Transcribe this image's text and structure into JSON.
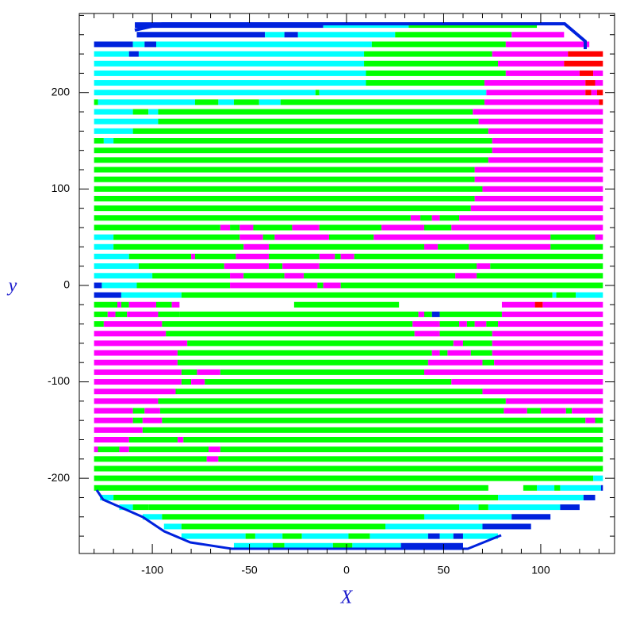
{
  "chart_data": {
    "type": "strips",
    "xlabel": "X",
    "ylabel": "y",
    "xlim": [
      -137.6,
      138
    ],
    "ylim": [
      -278,
      282
    ],
    "xticks": [
      -100,
      -50,
      0,
      50,
      100
    ],
    "yticks": [
      -200,
      -100,
      0,
      100,
      200
    ],
    "xminorticks": [
      -130,
      -120,
      -110,
      -90,
      -80,
      -70,
      -60,
      -40,
      -30,
      -20,
      -10,
      10,
      20,
      30,
      40,
      60,
      70,
      80,
      90,
      110,
      120,
      130
    ],
    "yminorticks": [
      -260,
      -240,
      -220,
      -180,
      -160,
      -140,
      -120,
      -80,
      -60,
      -40,
      -20,
      20,
      40,
      60,
      80,
      120,
      140,
      160,
      180,
      220,
      240,
      260,
      280
    ],
    "palette": {
      "g": "#00ff00",
      "m": "#ff00ff",
      "c": "#00ffff",
      "b": "#0022dd",
      "r": "#ff0000"
    },
    "rows": [
      {
        "y": 270,
        "breaks": [
          -109,
          -12,
          32,
          98
        ],
        "colors": [
          "b",
          "c",
          "g"
        ]
      },
      {
        "y": 260,
        "breaks": [
          -108,
          -42,
          -32,
          -25,
          25,
          85,
          112
        ],
        "colors": [
          "b",
          "c",
          "b",
          "c",
          "g",
          "m"
        ]
      },
      {
        "y": 250,
        "breaks": [
          -130,
          -110,
          -104,
          -98,
          13,
          82,
          125
        ],
        "colors": [
          "b",
          "c",
          "b",
          "c",
          "g",
          "m"
        ]
      },
      {
        "y": 240,
        "breaks": [
          -130,
          -112,
          -107,
          9,
          75,
          114,
          132
        ],
        "colors": [
          "c",
          "b",
          "c",
          "g",
          "m",
          "r"
        ]
      },
      {
        "y": 230,
        "breaks": [
          -130,
          9,
          78,
          112,
          132
        ],
        "colors": [
          "c",
          "g",
          "m",
          "r"
        ]
      },
      {
        "y": 220,
        "breaks": [
          -130,
          10,
          82,
          120,
          127,
          132
        ],
        "colors": [
          "c",
          "g",
          "m",
          "r",
          "m"
        ]
      },
      {
        "y": 210,
        "breaks": [
          -130,
          10,
          71,
          123,
          128,
          132
        ],
        "colors": [
          "c",
          "g",
          "m",
          "r",
          "m"
        ]
      },
      {
        "y": 200,
        "breaks": [
          -130,
          -16,
          -14,
          72,
          123,
          126,
          129,
          132
        ],
        "colors": [
          "c",
          "g",
          "c",
          "m",
          "r",
          "m",
          "r"
        ]
      },
      {
        "y": 190,
        "breaks": [
          -130,
          -128,
          -78,
          -66,
          -58,
          -45,
          -34,
          71,
          130,
          132
        ],
        "colors": [
          "g",
          "c",
          "g",
          "c",
          "g",
          "c",
          "g",
          "m",
          "r"
        ]
      },
      {
        "y": 180,
        "breaks": [
          -130,
          -110,
          -102,
          -97,
          65,
          132
        ],
        "colors": [
          "c",
          "g",
          "c",
          "g",
          "m"
        ]
      },
      {
        "y": 170,
        "breaks": [
          -130,
          -97,
          68,
          132
        ],
        "colors": [
          "c",
          "g",
          "m"
        ]
      },
      {
        "y": 160,
        "breaks": [
          -130,
          -110,
          73,
          132
        ],
        "colors": [
          "c",
          "g",
          "m"
        ]
      },
      {
        "y": 150,
        "breaks": [
          -130,
          -125,
          -120,
          75,
          132
        ],
        "colors": [
          "g",
          "c",
          "g",
          "m"
        ]
      },
      {
        "y": 140,
        "breaks": [
          -130,
          75,
          132
        ],
        "colors": [
          "g",
          "m"
        ]
      },
      {
        "y": 130,
        "breaks": [
          -130,
          73,
          132
        ],
        "colors": [
          "g",
          "m"
        ]
      },
      {
        "y": 120,
        "breaks": [
          -130,
          66,
          132
        ],
        "colors": [
          "g",
          "m"
        ]
      },
      {
        "y": 110,
        "breaks": [
          -130,
          66,
          132
        ],
        "colors": [
          "g",
          "m"
        ]
      },
      {
        "y": 100,
        "breaks": [
          -130,
          70,
          132
        ],
        "colors": [
          "g",
          "m"
        ]
      },
      {
        "y": 90,
        "breaks": [
          -130,
          66,
          132
        ],
        "colors": [
          "g",
          "m"
        ]
      },
      {
        "y": 80,
        "breaks": [
          -130,
          64,
          132
        ],
        "colors": [
          "g",
          "m"
        ]
      },
      {
        "y": 70,
        "breaks": [
          -130,
          33,
          38,
          44,
          48,
          58,
          132
        ],
        "colors": [
          "g",
          "m",
          "g",
          "m",
          "g",
          "m"
        ]
      },
      {
        "y": 60,
        "breaks": [
          -130,
          -65,
          -60,
          -55,
          -48,
          -28,
          -14,
          18,
          40,
          54,
          132
        ],
        "colors": [
          "g",
          "m",
          "g",
          "m",
          "g",
          "m",
          "g",
          "m",
          "g",
          "m"
        ]
      },
      {
        "y": 50,
        "breaks": [
          -130,
          -120,
          -55,
          -43,
          -37,
          -9,
          14,
          105,
          128,
          132
        ],
        "colors": [
          "c",
          "g",
          "m",
          "g",
          "m",
          "g",
          "m",
          "g",
          "m"
        ]
      },
      {
        "y": 40,
        "breaks": [
          -130,
          -120,
          -53,
          -40,
          40,
          47,
          63,
          105,
          132
        ],
        "colors": [
          "c",
          "g",
          "m",
          "g",
          "m",
          "g",
          "m",
          "g"
        ]
      },
      {
        "y": 30,
        "breaks": [
          -130,
          -112,
          -80,
          -78,
          -57,
          -40,
          -14,
          -6,
          -3,
          4,
          132
        ],
        "colors": [
          "c",
          "g",
          "m",
          "g",
          "m",
          "g",
          "m",
          "g",
          "m",
          "g"
        ]
      },
      {
        "y": 20,
        "breaks": [
          -130,
          -107,
          -63,
          -40,
          -33,
          -14,
          67,
          74,
          132
        ],
        "colors": [
          "c",
          "g",
          "m",
          "g",
          "m",
          "g",
          "m",
          "g"
        ]
      },
      {
        "y": 10,
        "breaks": [
          -130,
          -100,
          -60,
          -53,
          -32,
          -22,
          56,
          67,
          132
        ],
        "colors": [
          "c",
          "g",
          "m",
          "g",
          "m",
          "g",
          "m",
          "g"
        ]
      },
      {
        "y": 0,
        "breaks": [
          -130,
          -126,
          -108,
          -60,
          -15,
          -12,
          -3,
          132
        ],
        "colors": [
          "b",
          "c",
          "g",
          "m",
          "g",
          "m",
          "g"
        ]
      },
      {
        "y": -10,
        "breaks": [
          -130,
          -116,
          -85,
          106,
          108,
          118,
          132
        ],
        "colors": [
          "b",
          "c",
          "g",
          "c",
          "g",
          "c"
        ]
      },
      {
        "y": -20,
        "breaks": [
          -130,
          -118,
          -116,
          -112,
          -98,
          -90,
          -86,
          -27,
          27,
          80,
          97,
          101,
          132
        ],
        "colors": [
          "g",
          "m",
          "g",
          "m",
          "g",
          "m",
          null,
          "g",
          null,
          "m",
          "r",
          "m"
        ]
      },
      {
        "y": -30,
        "breaks": [
          -130,
          -123,
          -119,
          -113,
          -97,
          -86,
          37,
          40,
          44,
          48,
          80,
          132
        ],
        "colors": [
          "g",
          "m",
          "g",
          "m",
          "g",
          "g",
          "m",
          "g",
          "b",
          "g",
          "m"
        ]
      },
      {
        "y": -40,
        "breaks": [
          -130,
          -125,
          -95,
          34,
          48,
          58,
          62,
          66,
          72,
          78,
          132
        ],
        "colors": [
          "g",
          "m",
          "g",
          "m",
          "g",
          "m",
          "g",
          "m",
          "g",
          "m"
        ]
      },
      {
        "y": -50,
        "breaks": [
          -130,
          -93,
          35,
          48,
          75,
          132
        ],
        "colors": [
          "m",
          "g",
          "m",
          "g",
          "m"
        ]
      },
      {
        "y": -60,
        "breaks": [
          -130,
          -82,
          55,
          60,
          75,
          132
        ],
        "colors": [
          "m",
          "g",
          "m",
          "g",
          "m"
        ]
      },
      {
        "y": -70,
        "breaks": [
          -130,
          -87,
          44,
          48,
          52,
          64,
          75,
          132
        ],
        "colors": [
          "m",
          "g",
          "m",
          "g",
          "m",
          "g",
          "m"
        ]
      },
      {
        "y": -80,
        "breaks": [
          -130,
          -87,
          42,
          70,
          76,
          132
        ],
        "colors": [
          "m",
          "g",
          "m",
          "g",
          "m"
        ]
      },
      {
        "y": -90,
        "breaks": [
          -130,
          -85,
          -77,
          -65,
          40,
          132
        ],
        "colors": [
          "m",
          "g",
          "m",
          "g",
          "m"
        ]
      },
      {
        "y": -100,
        "breaks": [
          -130,
          -85,
          -80,
          -73,
          54,
          132
        ],
        "colors": [
          "m",
          "g",
          "m",
          "g",
          "m"
        ]
      },
      {
        "y": -110,
        "breaks": [
          -130,
          -88,
          70,
          132
        ],
        "colors": [
          "m",
          "g",
          "m"
        ]
      },
      {
        "y": -120,
        "breaks": [
          -130,
          -97,
          82,
          132
        ],
        "colors": [
          "m",
          "g",
          "m"
        ]
      },
      {
        "y": -130,
        "breaks": [
          -130,
          -110,
          -104,
          -96,
          81,
          93,
          100,
          113,
          116,
          132
        ],
        "colors": [
          "m",
          "g",
          "m",
          "g",
          "m",
          "g",
          "m",
          "g",
          "m"
        ]
      },
      {
        "y": -140,
        "breaks": [
          -130,
          -110,
          -105,
          -95,
          123,
          128,
          132
        ],
        "colors": [
          "m",
          "g",
          "m",
          "g",
          "m",
          "g"
        ]
      },
      {
        "y": -150,
        "breaks": [
          -130,
          -105,
          132
        ],
        "colors": [
          "m",
          "g"
        ]
      },
      {
        "y": -160,
        "breaks": [
          -130,
          -112,
          -87,
          -84,
          132
        ],
        "colors": [
          "m",
          "g",
          "m",
          "g"
        ]
      },
      {
        "y": -170,
        "breaks": [
          -130,
          -128,
          -117,
          -112,
          -71,
          -65,
          132
        ],
        "colors": [
          "m",
          "g",
          "m",
          "g",
          "m",
          "g"
        ]
      },
      {
        "y": -180,
        "breaks": [
          -130,
          -72,
          -66,
          132
        ],
        "colors": [
          "g",
          "m",
          "g"
        ]
      },
      {
        "y": -190,
        "breaks": [
          -130,
          132
        ],
        "colors": [
          "g"
        ]
      },
      {
        "y": -200,
        "breaks": [
          -130,
          127,
          132
        ],
        "colors": [
          "g",
          "c"
        ]
      },
      {
        "y": -210,
        "breaks": [
          -130,
          73,
          91,
          98,
          107,
          110,
          131,
          132
        ],
        "colors": [
          "g",
          null,
          "g",
          "c",
          "g",
          "c",
          "b"
        ]
      },
      {
        "y": -220,
        "breaks": [
          -127,
          -120,
          78,
          122,
          128
        ],
        "colors": [
          "c",
          "g",
          "c",
          "b"
        ]
      },
      {
        "y": -230,
        "breaks": [
          -117,
          -110,
          -102,
          58,
          68,
          73,
          110,
          120
        ],
        "colors": [
          "c",
          "g",
          "g",
          "c",
          "g",
          "c",
          "b"
        ]
      },
      {
        "y": -240,
        "breaks": [
          -105,
          -95,
          40,
          85,
          105
        ],
        "colors": [
          "c",
          "g",
          "c",
          "b"
        ]
      },
      {
        "y": -250,
        "breaks": [
          -94,
          -85,
          20,
          70,
          95
        ],
        "colors": [
          "c",
          "g",
          "c",
          "b"
        ]
      },
      {
        "y": -260,
        "breaks": [
          -85,
          -52,
          -47,
          -33,
          -23,
          1,
          12,
          42,
          48,
          55,
          60,
          78
        ],
        "colors": [
          "c",
          "g",
          "c",
          "g",
          "c",
          "g",
          "c",
          "b",
          "c",
          "b",
          "c"
        ]
      },
      {
        "y": -270,
        "breaks": [
          -58,
          -38,
          -32,
          -7,
          3,
          28,
          60
        ],
        "colors": [
          "c",
          "g",
          "c",
          "g",
          "c",
          "b"
        ]
      }
    ]
  }
}
